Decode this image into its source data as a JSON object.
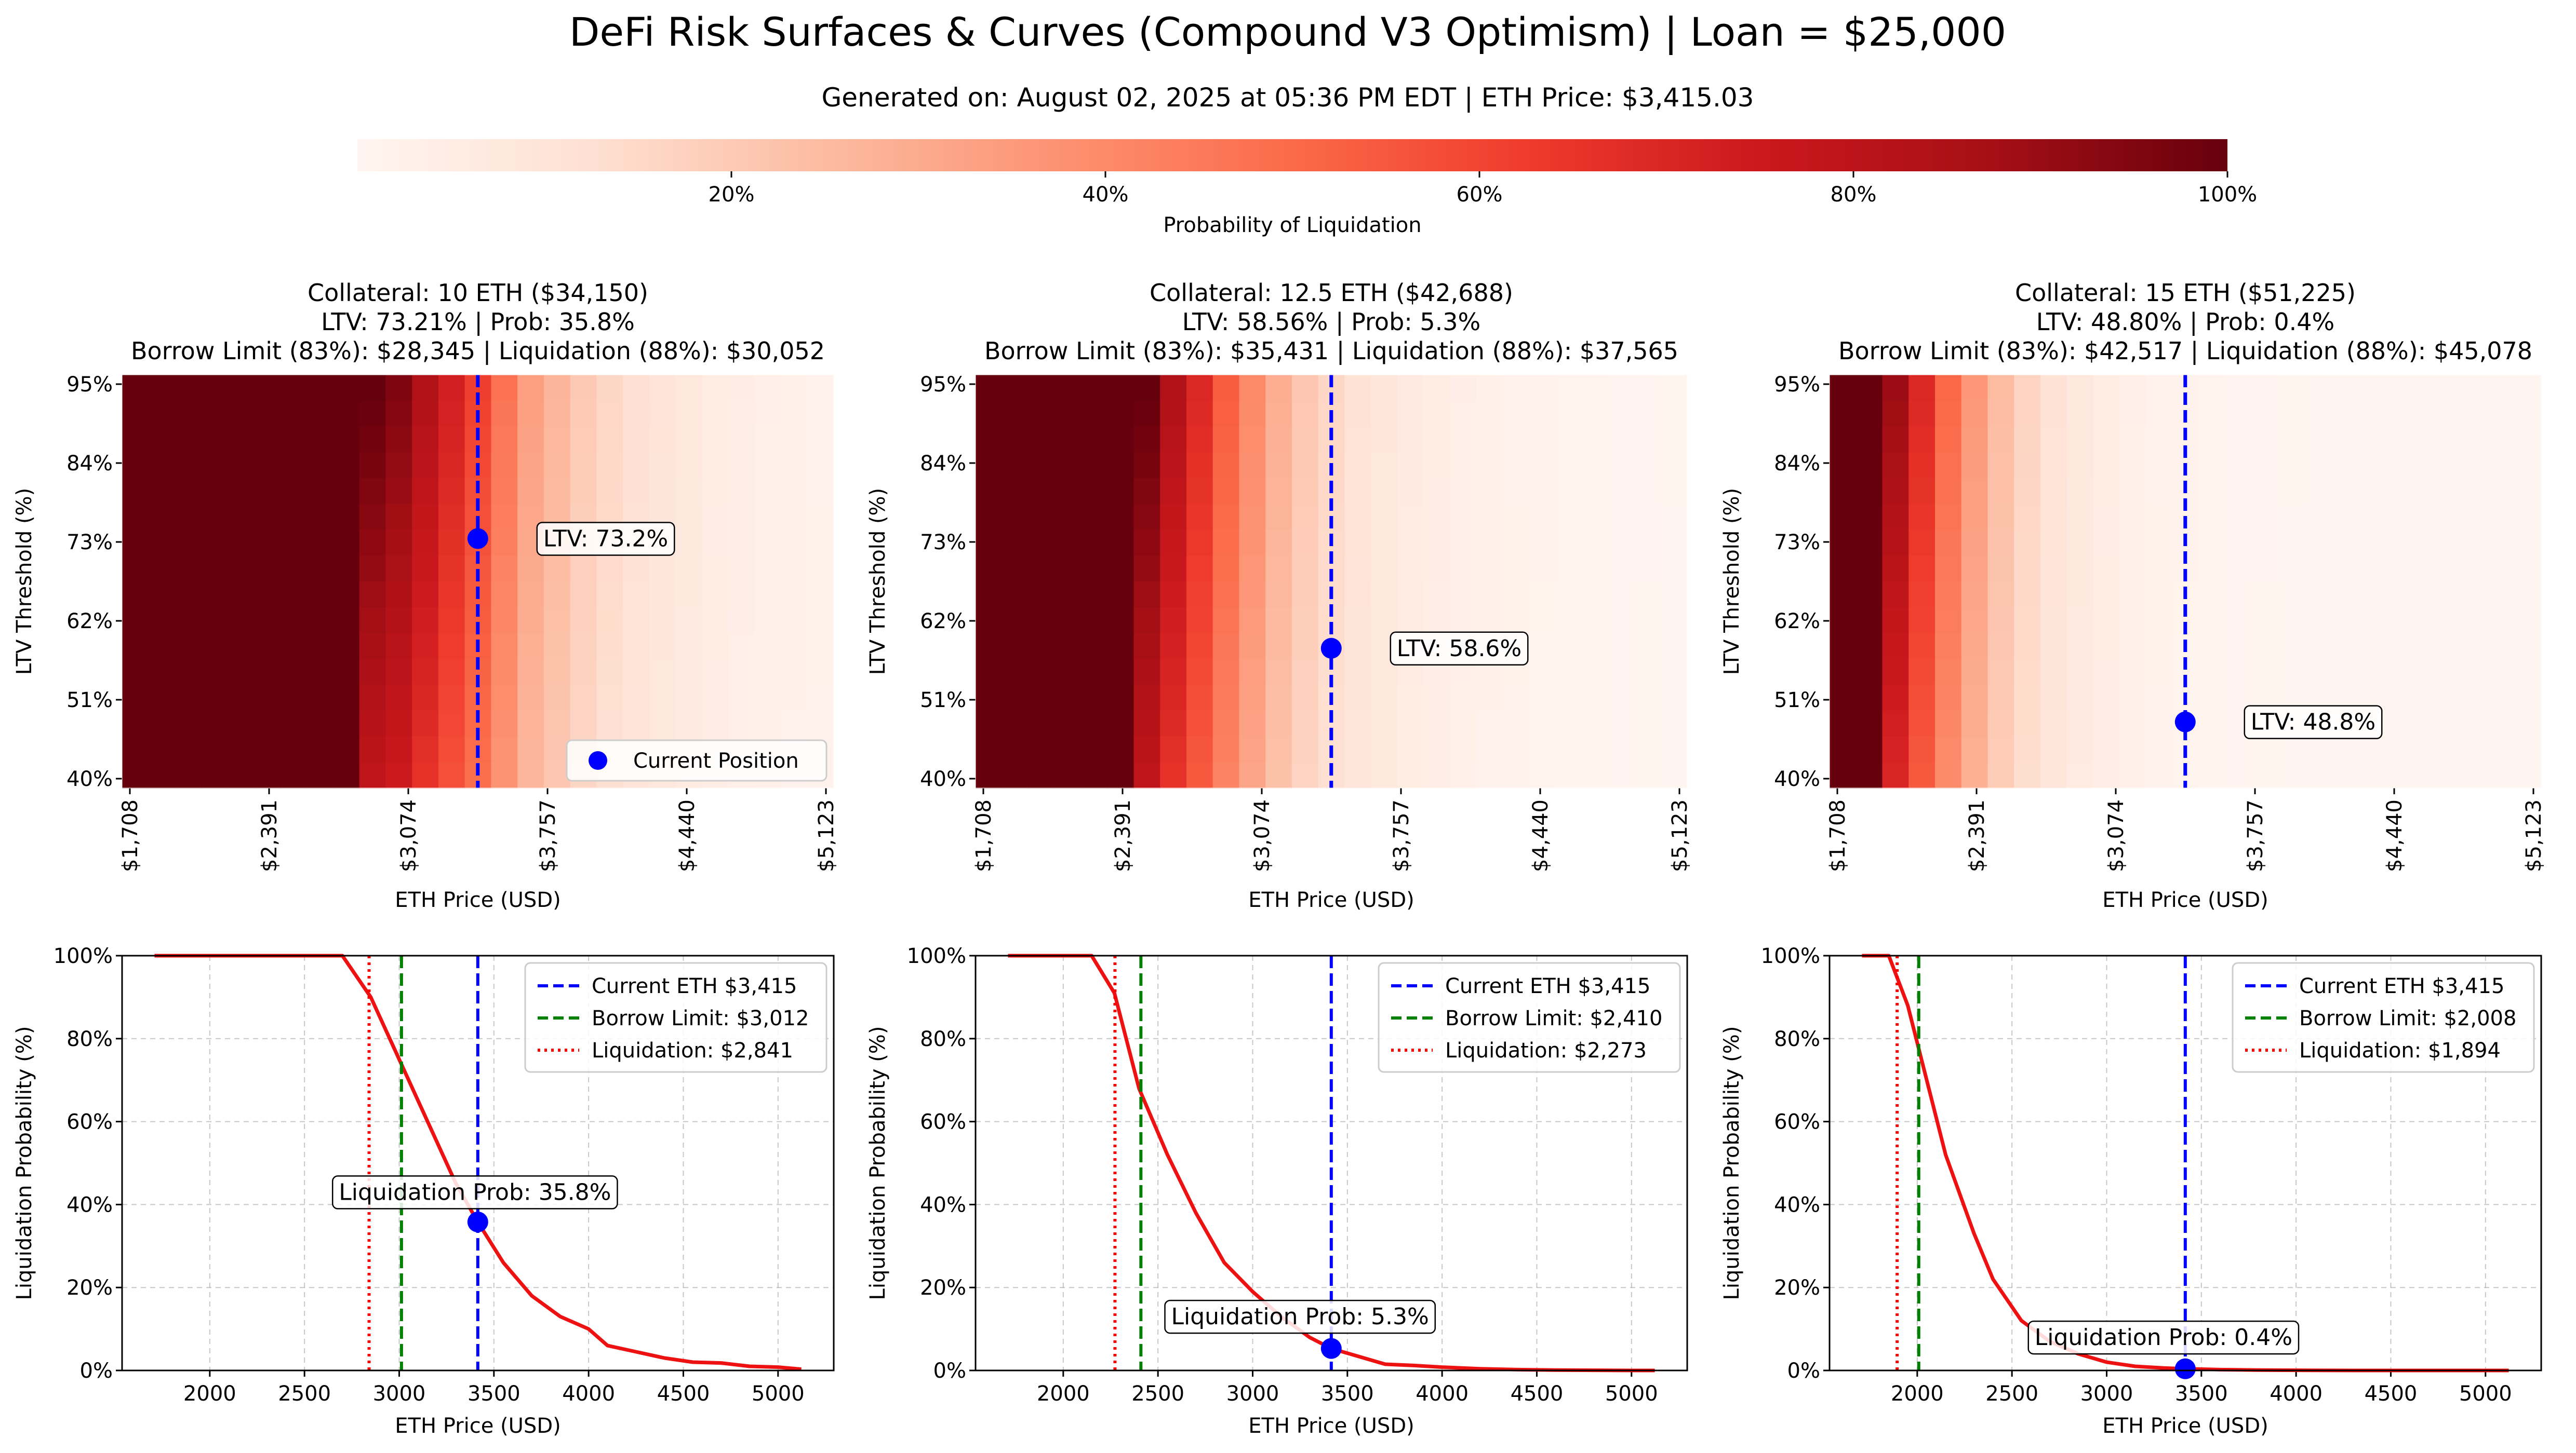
{
  "figure": {
    "title": "DeFi Risk Surfaces & Curves (Compound V3 Optimism) | Loan = $25,000",
    "subtitle": "Generated on: August 02, 2025 at 05:36 PM EDT | ETH Price: $3,415.03"
  },
  "colorbar": {
    "label": "Probability of Liquidation",
    "ticks": [
      "20%",
      "40%",
      "60%",
      "80%",
      "100%"
    ],
    "tick_values": [
      20,
      40,
      60,
      80,
      100
    ],
    "range": [
      0,
      100
    ],
    "colormap": "Reds"
  },
  "colors": {
    "current": "#0000ff",
    "borrow": "#008000",
    "liquidation": "#ff0000",
    "curve": "#ee1111"
  },
  "chart_data": [
    {
      "type": "heatmap",
      "title_lines": [
        "Collateral: 10 ETH ($34,150)",
        "LTV: 73.21% | Prob: 35.8%",
        "Borrow Limit (83%): $28,345 | Liquidation (88%): $30,052"
      ],
      "xlabel": "ETH Price (USD)",
      "ylabel": "LTV Threshold (%)",
      "x_ticks": [
        "$1,708",
        "$2,391",
        "$3,074",
        "$3,757",
        "$4,440",
        "$5,123"
      ],
      "y_ticks": [
        "40%",
        "51%",
        "62%",
        "73%",
        "84%",
        "95%"
      ],
      "xlim": [
        1708,
        5123
      ],
      "ylim": [
        40,
        95
      ],
      "current_price": 3415,
      "marker": {
        "x": 3415,
        "y": 73.2,
        "label": "LTV: 73.2%"
      },
      "legend": {
        "label": "Current Position",
        "position": "lower-right"
      },
      "row_profile": [
        100,
        100,
        100,
        100,
        100,
        100,
        100,
        100,
        100,
        90,
        85,
        75,
        65,
        55,
        42,
        30,
        24,
        18,
        14,
        11,
        9,
        7,
        5,
        4,
        3,
        2.5,
        2
      ]
    },
    {
      "type": "heatmap",
      "title_lines": [
        "Collateral: 12.5 ETH ($42,688)",
        "LTV: 58.56% | Prob: 5.3%",
        "Borrow Limit (83%): $35,431 | Liquidation (88%): $37,565"
      ],
      "xlabel": "ETH Price (USD)",
      "ylabel": "LTV Threshold (%)",
      "x_ticks": [
        "$1,708",
        "$2,391",
        "$3,074",
        "$3,757",
        "$4,440",
        "$5,123"
      ],
      "y_ticks": [
        "40%",
        "51%",
        "62%",
        "73%",
        "84%",
        "95%"
      ],
      "xlim": [
        1708,
        5123
      ],
      "ylim": [
        40,
        95
      ],
      "current_price": 3415,
      "marker": {
        "x": 3415,
        "y": 58.6,
        "label": "LTV: 58.6%"
      },
      "row_profile": [
        100,
        100,
        100,
        100,
        100,
        100,
        90,
        75,
        62,
        48,
        36,
        26,
        19,
        14,
        10,
        8,
        6,
        4.5,
        3.5,
        2.5,
        2,
        1.5,
        1,
        0.8,
        0.5,
        0.3,
        0.2
      ]
    },
    {
      "type": "heatmap",
      "title_lines": [
        "Collateral: 15 ETH ($51,225)",
        "LTV: 48.80% | Prob: 0.4%",
        "Borrow Limit (83%): $42,517 | Liquidation (88%): $45,078"
      ],
      "xlabel": "ETH Price (USD)",
      "ylabel": "LTV Threshold (%)",
      "x_ticks": [
        "$1,708",
        "$2,391",
        "$3,074",
        "$3,757",
        "$4,440",
        "$5,123"
      ],
      "y_ticks": [
        "40%",
        "51%",
        "62%",
        "73%",
        "84%",
        "95%"
      ],
      "xlim": [
        1708,
        5123
      ],
      "ylim": [
        40,
        95
      ],
      "current_price": 3415,
      "marker": {
        "x": 3415,
        "y": 48.8,
        "label": "LTV: 48.8%"
      },
      "row_profile": [
        100,
        100,
        80,
        62,
        45,
        32,
        22,
        15,
        10,
        7,
        5,
        3,
        2,
        1.5,
        1,
        0.5,
        0.3,
        0.2,
        0.1,
        0,
        0,
        0,
        0,
        0,
        0,
        0,
        0
      ]
    },
    {
      "type": "line",
      "xlabel": "ETH Price (USD)",
      "ylabel": "Liquidation Probability (%)",
      "xlim": [
        1537,
        5294
      ],
      "ylim": [
        0,
        100
      ],
      "x_ticks": [
        2000,
        2500,
        3000,
        3500,
        4000,
        4500,
        5000
      ],
      "y_ticks": [
        "0%",
        "20%",
        "40%",
        "60%",
        "80%",
        "100%"
      ],
      "y_tick_values": [
        0,
        20,
        40,
        60,
        80,
        100
      ],
      "grid": true,
      "x": [
        1708,
        2000,
        2300,
        2550,
        2700,
        2850,
        3000,
        3150,
        3300,
        3415,
        3550,
        3700,
        3850,
        4000,
        4100,
        4250,
        4400,
        4550,
        4700,
        4850,
        5000,
        5123
      ],
      "y": [
        100,
        100,
        100,
        100,
        100,
        90,
        75,
        60,
        45,
        35.8,
        26,
        18,
        13,
        10,
        6,
        4.5,
        3,
        2,
        1.8,
        1,
        0.8,
        0.3
      ],
      "vlines": [
        {
          "x": 3415,
          "label": "Current ETH $3,415",
          "kind": "current"
        },
        {
          "x": 3012,
          "label": "Borrow Limit: $3,012",
          "kind": "borrow"
        },
        {
          "x": 2841,
          "label": "Liquidation: $2,841",
          "kind": "liquidation"
        }
      ],
      "point": {
        "x": 3415,
        "y": 35.8
      },
      "annotation": {
        "label": "Liquidation Prob: 35.8%",
        "x": 3400,
        "y": 43
      }
    },
    {
      "type": "line",
      "xlabel": "ETH Price (USD)",
      "ylabel": "Liquidation Probability (%)",
      "xlim": [
        1537,
        5294
      ],
      "ylim": [
        0,
        100
      ],
      "x_ticks": [
        2000,
        2500,
        3000,
        3500,
        4000,
        4500,
        5000
      ],
      "y_ticks": [
        "0%",
        "20%",
        "40%",
        "60%",
        "80%",
        "100%"
      ],
      "y_tick_values": [
        0,
        20,
        40,
        60,
        80,
        100
      ],
      "grid": true,
      "x": [
        1708,
        1900,
        2150,
        2270,
        2400,
        2550,
        2700,
        2850,
        3000,
        3150,
        3300,
        3415,
        3550,
        3700,
        3850,
        4000,
        4200,
        4400,
        4600,
        4800,
        5000,
        5123
      ],
      "y": [
        100,
        100,
        100,
        91,
        68,
        52,
        38,
        26,
        19,
        13,
        8,
        5.3,
        3.5,
        1.5,
        1.2,
        0.8,
        0.4,
        0.2,
        0.1,
        0.05,
        0,
        0
      ],
      "vlines": [
        {
          "x": 3415,
          "label": "Current ETH $3,415",
          "kind": "current"
        },
        {
          "x": 2410,
          "label": "Borrow Limit: $2,410",
          "kind": "borrow"
        },
        {
          "x": 2273,
          "label": "Liquidation: $2,273",
          "kind": "liquidation"
        }
      ],
      "point": {
        "x": 3415,
        "y": 5.3
      },
      "annotation": {
        "label": "Liquidation Prob: 5.3%",
        "x": 3250,
        "y": 13
      }
    },
    {
      "type": "line",
      "xlabel": "ETH Price (USD)",
      "ylabel": "Liquidation Probability (%)",
      "xlim": [
        1537,
        5294
      ],
      "ylim": [
        0,
        100
      ],
      "x_ticks": [
        2000,
        2500,
        3000,
        3500,
        4000,
        4500,
        5000
      ],
      "y_ticks": [
        "0%",
        "20%",
        "40%",
        "60%",
        "80%",
        "100%"
      ],
      "y_tick_values": [
        0,
        20,
        40,
        60,
        80,
        100
      ],
      "grid": true,
      "x": [
        1708,
        1850,
        1950,
        2050,
        2150,
        2300,
        2400,
        2550,
        2700,
        2850,
        3000,
        3150,
        3300,
        3415,
        3600,
        3800,
        4000,
        4300,
        4600,
        4900,
        5123
      ],
      "y": [
        100,
        100,
        88,
        70,
        52,
        33,
        22,
        12,
        7,
        4,
        2,
        1,
        0.6,
        0.4,
        0.2,
        0.1,
        0.05,
        0,
        0,
        0,
        0
      ],
      "vlines": [
        {
          "x": 3415,
          "label": "Current ETH $3,415",
          "kind": "current"
        },
        {
          "x": 2008,
          "label": "Borrow Limit: $2,008",
          "kind": "borrow"
        },
        {
          "x": 1894,
          "label": "Liquidation: $1,894",
          "kind": "liquidation"
        }
      ],
      "point": {
        "x": 3415,
        "y": 0.4
      },
      "annotation": {
        "label": "Liquidation Prob: 0.4%",
        "x": 3300,
        "y": 8
      }
    }
  ]
}
